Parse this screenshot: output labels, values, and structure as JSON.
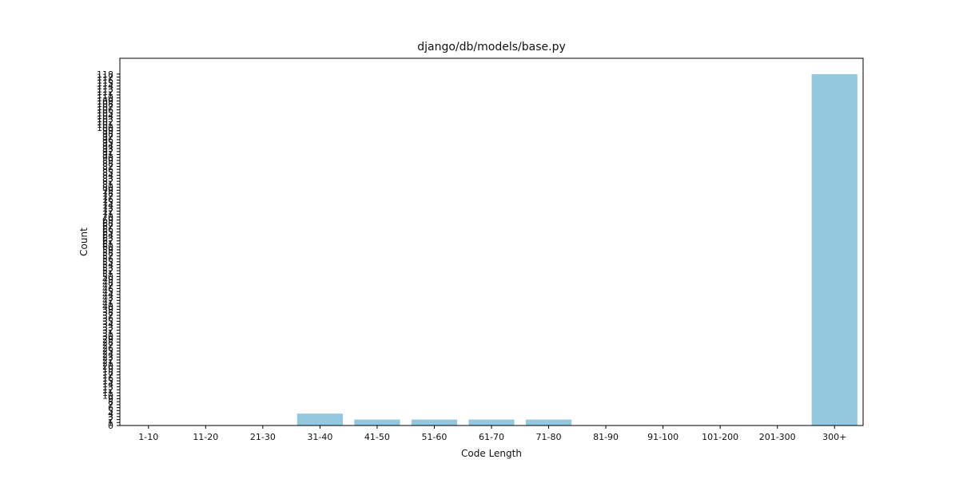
{
  "chart_data": {
    "type": "bar",
    "title": "django/db/models/base.py",
    "xlabel": "Code Length",
    "ylabel": "Count",
    "categories": [
      "1-10",
      "11-20",
      "21-30",
      "31-40",
      "41-50",
      "51-60",
      "61-70",
      "71-80",
      "81-90",
      "91-100",
      "101-200",
      "201-300",
      "300+"
    ],
    "values": [
      0,
      0,
      0,
      4,
      2,
      2,
      2,
      2,
      0,
      0,
      0,
      0,
      118
    ],
    "ylim": [
      0,
      118
    ],
    "yticks": [
      0,
      1,
      2,
      3,
      4,
      5,
      6,
      7,
      8,
      9,
      10,
      11,
      12,
      13,
      14,
      15,
      16,
      17,
      18,
      19,
      20,
      21,
      22,
      23,
      24,
      25,
      26,
      27,
      28,
      29,
      30,
      31,
      32,
      33,
      34,
      35,
      36,
      37,
      38,
      39,
      40,
      41,
      42,
      43,
      44,
      45,
      46,
      47,
      48,
      49,
      50,
      51,
      52,
      53,
      54,
      55,
      56,
      57,
      58,
      59,
      60,
      61,
      62,
      63,
      64,
      65,
      66,
      67,
      68,
      69,
      70,
      71,
      72,
      73,
      74,
      75,
      76,
      77,
      78,
      79,
      80,
      81,
      82,
      83,
      84,
      85,
      86,
      87,
      88,
      89,
      90,
      91,
      92,
      93,
      94,
      95,
      96,
      97,
      98,
      99,
      100,
      101,
      102,
      103,
      104,
      105,
      106,
      107,
      108,
      109,
      110,
      111,
      112,
      113,
      114,
      115,
      116,
      117,
      118
    ],
    "bar_color": "#92c9df",
    "grid": false,
    "legend": false
  }
}
